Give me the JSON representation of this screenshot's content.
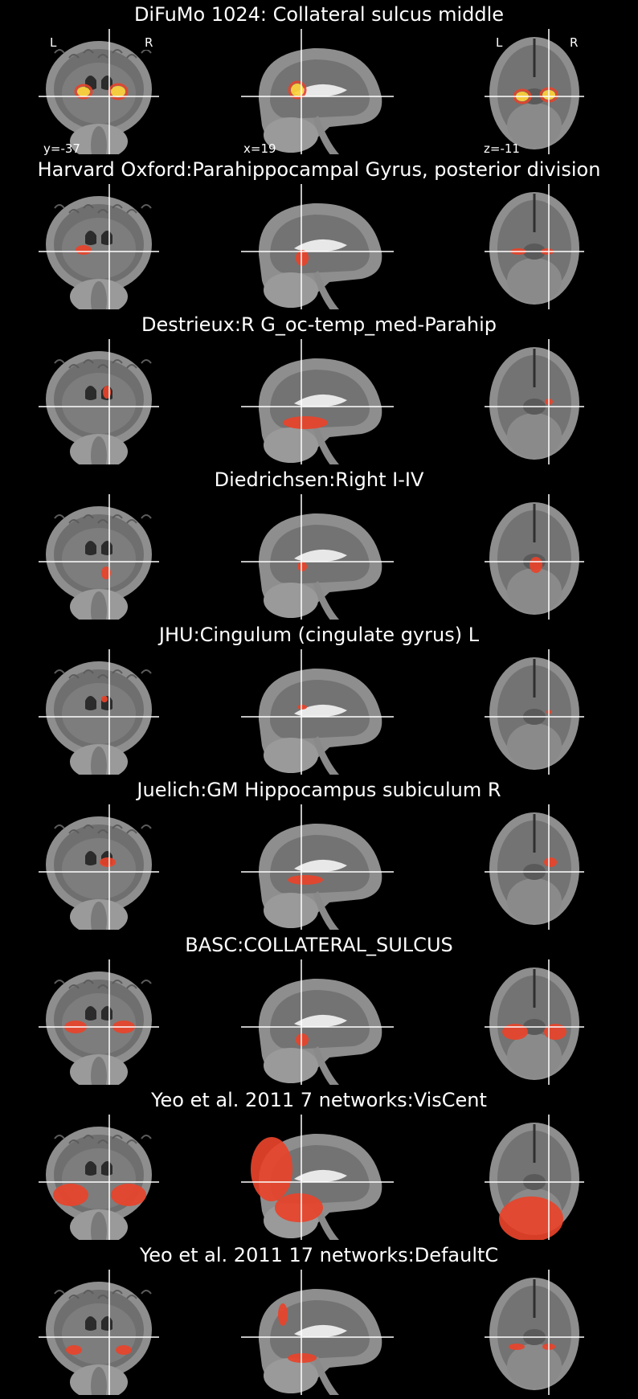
{
  "panels": [
    {
      "title": "DiFuMo 1024: Collateral sulcus middle",
      "kind": "map"
    },
    {
      "title": "Harvard Oxford:Parahippocampal Gyrus, posterior division",
      "kind": "atlas"
    },
    {
      "title": "Destrieux:R G_oc-temp_med-Parahip",
      "kind": "atlas"
    },
    {
      "title": "Diedrichsen:Right I-IV",
      "kind": "atlas"
    },
    {
      "title": "JHU:Cingulum (cingulate gyrus) L",
      "kind": "atlas"
    },
    {
      "title": "Juelich:GM Hippocampus subiculum R",
      "kind": "atlas"
    },
    {
      "title": "BASC:COLLATERAL_SULCUS",
      "kind": "atlas"
    },
    {
      "title": "Yeo et al. 2011 7 networks:VisCent",
      "kind": "atlas"
    },
    {
      "title": "Yeo et al. 2011 17 networks:DefaultC",
      "kind": "atlas"
    }
  ],
  "orientation": {
    "left": "L",
    "right": "R"
  },
  "coords": {
    "y": "y=-37",
    "x": "x=19",
    "z": "z=-11"
  },
  "colors": {
    "background": "#000000",
    "overlay": "#e8432a",
    "hot": "#ffd23a",
    "crosshair": "#ffffff"
  }
}
